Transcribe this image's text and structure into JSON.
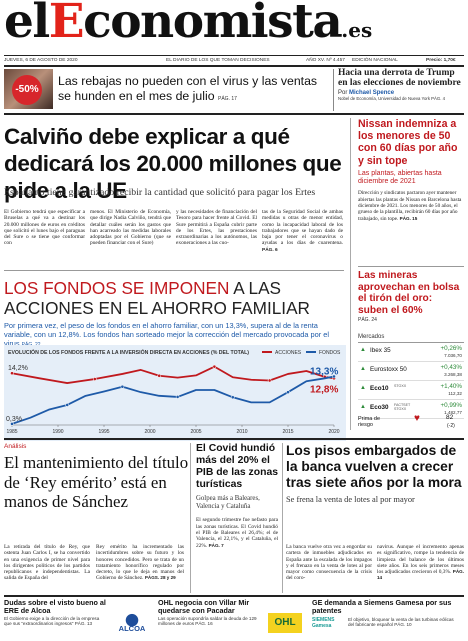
{
  "masthead": {
    "title_pre": "el",
    "title_accent": "E",
    "title_post": "conomista",
    "title_suffix": ".es",
    "date": "JUEVES, 6 DE AGOSTO DE 2020",
    "slogan": "EL DIARIO DE LOS QUE TOMAN DECISIONES",
    "issue": "AÑO XV. Nº 4.457",
    "edition": "EDICIÓN NACIONAL",
    "price": "Precio: 1,70€"
  },
  "top_left": {
    "badge": "-50%",
    "headline": "Las rebajas no pueden con el virus y las ventas se hunden en el mes de julio",
    "page": "PÁG. 17"
  },
  "top_right": {
    "headline": "Hacia una derrota de Trump en las elecciones de noviembre",
    "by": "Por",
    "author": "Michael Spence",
    "role": "Nobel de Economía, Universidad de Nueva York",
    "page": "PÁG. 4"
  },
  "lead": {
    "headline": "Calviño debe explicar a qué dedicará los 20.000 millones que pide a la UE",
    "subhead": "España no tiene garantizado recibir la cantidad que solicitó para pagar los Ertes",
    "col1": "El Gobierno tendrá que especificar a Bruselas a qué va a destinar los 20.000 millones de euros en créditos que solicitó el lunes bajo el paraguas del Sure o se tiene que conformar con",
    "col2": "menos. El Ministerio de Economía, que dirige Nadia Calviño, tendrá que detallar cuáles serán los gastos que han acarreado las medidas laborales adoptadas por el Gobierno (que se pueden financiar con el Sure)",
    "col3": "y las necesidades de financiación del Tesoro para hacer frente al Covid. El Sure permitirá a España cubrir parte de los Ertes, las prestaciones extraordinarias a los autónomos, las exoneraciones a las cuo-",
    "col4": "tas de la Seguridad Social de ambas medidas u otras de menor entidad, como la incapacidad laboral de los trabajadores que se hayan dado de baja por tener el coronavirus o ayudas a los días de cuarentena.",
    "page": "PÁG. 6"
  },
  "right_col": {
    "h1": "Nissan indemniza a los menores de 50 con 60 días por año y sin tope",
    "sub1": "Las plantas, abiertas hasta diciembre de 2021",
    "body1": "Dirección y sindicatos pactaron ayer mantener abiertas las plantas de Nissan en Barcelona hasta diciembre de 2021. Los menores de 50 años, el grueso de la plantilla, recibirán 60 días por año trabajado, sin tope.",
    "page1": "PÁG. 15",
    "h2": "Las mineras aprovechan en bolsa el tirón del oro: suben el 60%",
    "page2": "PÁG. 24",
    "markets_title": "Mercados",
    "markets": [
      {
        "name": "Ibex 35",
        "change": "+0,26%",
        "value": "7.036,70",
        "color": "#2e8b3a"
      },
      {
        "name": "Eurostoxx 50",
        "change": "+0,43%",
        "value": "3.268,38",
        "color": "#2e8b3a"
      },
      {
        "name": "Eco10",
        "tag": "STOXX",
        "change": "+1,40%",
        "value": "112,32",
        "color": "#2e8b3a"
      },
      {
        "name": "Eco30",
        "tag": "FACTSET STOXX",
        "change": "+0,99%",
        "value": "1.482,77",
        "color": "#2e8b3a"
      }
    ],
    "risk_label": "Prima de riesgo",
    "risk_value": "82",
    "risk_change": "(-2)"
  },
  "feature": {
    "headline_red": "LOS FONDOS SE IMPONEN",
    "headline_rest": " A LAS ACCIONES EN EL AHORRO FAMILIAR",
    "text": "Por primera vez, el peso de los fondos en el ahorro familiar, con un 13,3%, supera al de la renta variable, con un 12,8%. Los fondos han sorteado mejor la corrección del mercado provocada por el virus",
    "page": "PÁG. 22"
  },
  "chart_data": {
    "type": "line",
    "title": "EVOLUCIÓN DE LOS FONDOS FRENTE A LA INVERSIÓN DIRECTA EN ACCIONES (% DEL TOTAL)",
    "x_ticks": [
      "1985",
      "1990",
      "1995",
      "2000",
      "2005",
      "2010",
      "2015",
      "2020"
    ],
    "ylim": [
      0,
      17
    ],
    "series": [
      {
        "name": "ACCIONES",
        "color": "#c0191e",
        "x": [
          1985,
          1988,
          1991,
          1994,
          1997,
          1999,
          2001,
          2003,
          2005,
          2007,
          2009,
          2011,
          2013,
          2015,
          2017,
          2019,
          2020
        ],
        "values": [
          14.2,
          12.8,
          11.5,
          12.6,
          14.0,
          15.1,
          13.5,
          13.0,
          13.6,
          16.0,
          13.1,
          12.4,
          12.2,
          14.0,
          14.8,
          13.2,
          12.8
        ]
      },
      {
        "name": "FONDOS",
        "color": "#1e5aa8",
        "x": [
          1985,
          1987,
          1989,
          1991,
          1993,
          1995,
          1997,
          1999,
          2001,
          2003,
          2005,
          2007,
          2009,
          2011,
          2013,
          2015,
          2017,
          2019,
          2020
        ],
        "values": [
          0.3,
          2.0,
          4.2,
          5.5,
          8.0,
          9.2,
          10.5,
          9.0,
          8.0,
          7.7,
          9.6,
          9.6,
          7.6,
          6.2,
          6.2,
          9.0,
          12.0,
          12.8,
          13.3
        ]
      }
    ],
    "labels": {
      "acc_start": "14,2%",
      "fon_start": "0,3%",
      "acc_end": "12,8%",
      "fon_end": "13,3%"
    }
  },
  "bottom": {
    "kicker": "Análisis",
    "h1": "El mantenimiento del título de ‘Rey emérito’ está en manos de Sánchez",
    "b1a": "La retirada del título de Rey, que ostenta Juan Carlos I, se ha convertido en una exigencia de primer nivel para los dirigentes políticos de los partidos republicanos e independentistas. La salida de España del",
    "b1b": "Rey emérito ha incrementado las incertidumbres sobre su futuro y los honores concedidos. Pero se trata de un tratamiento honorífico regulado por decreto, lo que le deja en manos del Gobierno de Sánchez.",
    "page1": "PÁGS. 28 y 29",
    "h2": "El Covid hundió más del 20% el PIB de las zonas turísticas",
    "sub2": "Golpea más a Baleares, Valencia y Cataluña",
    "b2": "El segundo trimestre fue nefasto para las zonas turísticas. El Covid hundió el PIB de Baleares el 26,4%; el de Valencia, el 22,1%, y el Cataluña, el 22%.",
    "page2": "PÁG. 7",
    "h3": "Los pisos embargados de la banca vuelven a crecer tras siete años por la mora",
    "sub3": "Se frena la venta de lotes al por mayor",
    "b3a": "La banca vuelve otra vez a engordar su cartera de inmuebles adjudicados en España ante la escalada de los impagos y el frenazo en la venta de lotes al por mayor como consecuencia de la crisis del coro-",
    "b3b": "navirus. Aunque el incremento apenas es significativo, rompe la tendencia de limpieza del balance de los últimos siete años. En los seis primeros meses los adjudicados crecieron el 0,3%.",
    "page3": "PÁG. 14"
  },
  "footer": [
    {
      "h": "Dudas sobre el visto bueno al ERE de Alcoa",
      "t": "El Gobierno exige a la dirección de la empresa que sus “extraordinarios ingresos”",
      "page": "PÁG. 13",
      "logo": "ALCOA"
    },
    {
      "h": "OHL negocia con Villar Mir quedarse con Pacadar",
      "t": "Las operación supondría saldar la deuda de 129 millones de euros",
      "page": "PÁG. 16",
      "logo": "OHL"
    },
    {
      "h": "GE demanda a Siemens Gamesa por sus patentes",
      "t": "El objetivo, bloquear la venta de las turbinas eólicas del fabricante español",
      "page": "PÁG. 10",
      "logo": "SIEMENS Gamesa"
    }
  ]
}
